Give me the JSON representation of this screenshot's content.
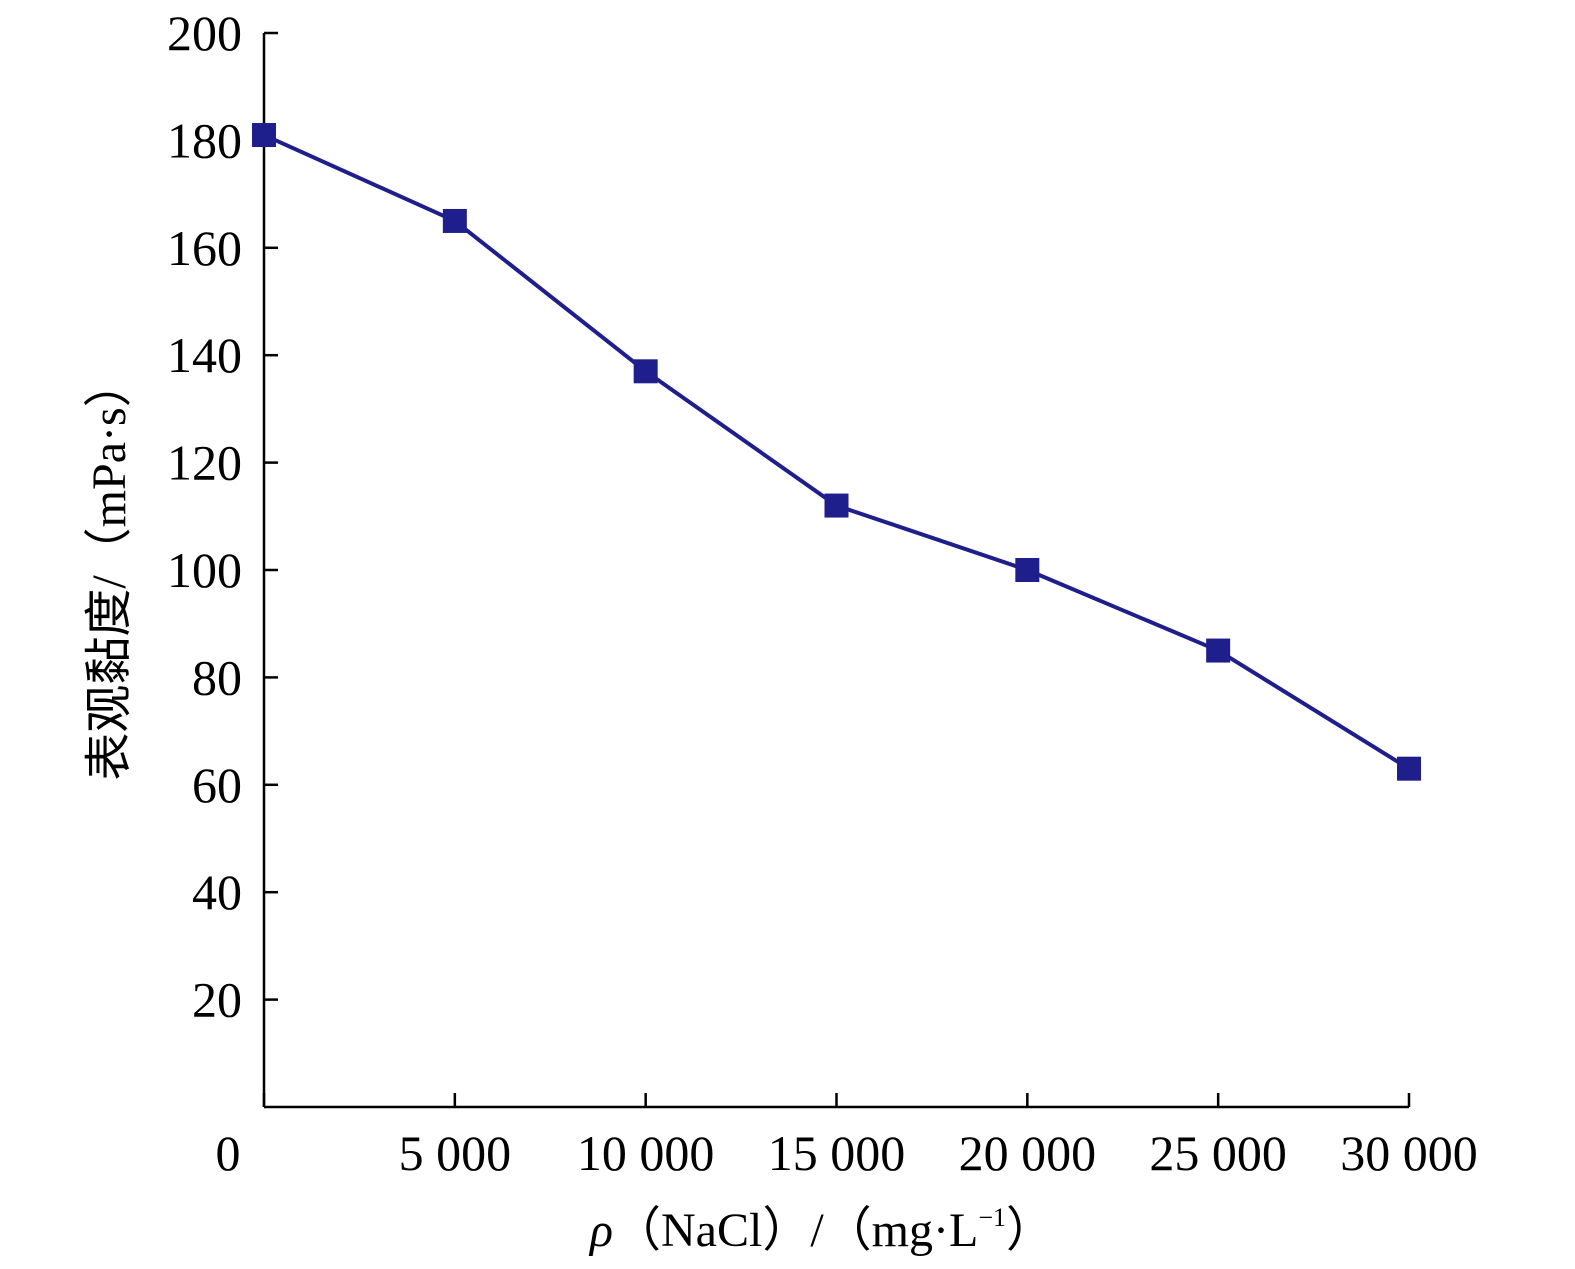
{
  "chart_data": {
    "type": "line",
    "title": "",
    "xlabel": {
      "symbol": "ρ",
      "text": "（NaCl）/（mg·L",
      "sup": "−1",
      "end": "）"
    },
    "ylabel": "表观黏度/（mPa·s）",
    "x": [
      0,
      5000,
      10000,
      15000,
      20000,
      25000,
      30000
    ],
    "x_tick_labels": [
      "0",
      "5 000",
      "10 000",
      "15 000",
      "20 000",
      "25 000",
      "30 000"
    ],
    "y_ticks": [
      20,
      40,
      60,
      80,
      100,
      120,
      140,
      160,
      180,
      200
    ],
    "y_tick_labels": [
      "20",
      "40",
      "60",
      "80",
      "100",
      "120",
      "140",
      "160",
      "180",
      "200"
    ],
    "xlim": [
      0,
      30000
    ],
    "ylim": [
      0,
      200
    ],
    "series": [
      {
        "values": [
          181,
          165,
          137,
          112,
          100,
          85,
          63
        ]
      }
    ],
    "marker": "square",
    "color": "#1e1e8c",
    "grid": false,
    "legend": "none"
  }
}
